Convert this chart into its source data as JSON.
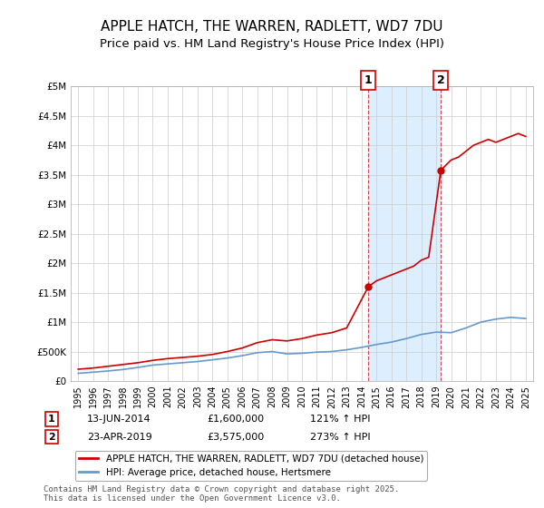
{
  "title": "APPLE HATCH, THE WARREN, RADLETT, WD7 7DU",
  "subtitle": "Price paid vs. HM Land Registry's House Price Index (HPI)",
  "title_fontsize": 11,
  "subtitle_fontsize": 9.5,
  "legend_label_red": "APPLE HATCH, THE WARREN, RADLETT, WD7 7DU (detached house)",
  "legend_label_blue": "HPI: Average price, detached house, Hertsmere",
  "annotation1_label": "1",
  "annotation1_date": "13-JUN-2014",
  "annotation1_price": "£1,600,000",
  "annotation1_hpi": "121% ↑ HPI",
  "annotation1_year": 2014.45,
  "annotation1_value": 1600000,
  "annotation2_label": "2",
  "annotation2_date": "23-APR-2019",
  "annotation2_price": "£3,575,000",
  "annotation2_hpi": "273% ↑ HPI",
  "annotation2_year": 2019.31,
  "annotation2_value": 3575000,
  "ylim": [
    0,
    5000000
  ],
  "xlim": [
    1994.5,
    2025.5
  ],
  "yticks": [
    0,
    500000,
    1000000,
    1500000,
    2000000,
    2500000,
    3000000,
    3500000,
    4000000,
    4500000,
    5000000
  ],
  "ytick_labels": [
    "£0",
    "£500K",
    "£1M",
    "£1.5M",
    "£2M",
    "£2.5M",
    "£3M",
    "£3.5M",
    "£4M",
    "£4.5M",
    "£5M"
  ],
  "xticks": [
    1995,
    1996,
    1997,
    1998,
    1999,
    2000,
    2001,
    2002,
    2003,
    2004,
    2005,
    2006,
    2007,
    2008,
    2009,
    2010,
    2011,
    2012,
    2013,
    2014,
    2015,
    2016,
    2017,
    2018,
    2019,
    2020,
    2021,
    2022,
    2023,
    2024,
    2025
  ],
  "red_color": "#cc0000",
  "blue_color": "#6699cc",
  "shade_color": "#ddeeff",
  "grid_color": "#cccccc",
  "background_color": "#ffffff",
  "footnote": "Contains HM Land Registry data © Crown copyright and database right 2025.\nThis data is licensed under the Open Government Licence v3.0.",
  "red_x": [
    1995,
    1996,
    1997,
    1998,
    1999,
    2000,
    2001,
    2002,
    2003,
    2004,
    2005,
    2006,
    2007,
    2008,
    2009,
    2010,
    2011,
    2012,
    2013,
    2014.45,
    2015,
    2015.5,
    2016,
    2016.5,
    2017,
    2017.5,
    2018,
    2018.5,
    2019.31,
    2019.8,
    2020,
    2020.5,
    2021,
    2021.5,
    2022,
    2022.5,
    2023,
    2023.5,
    2024,
    2024.5,
    2025
  ],
  "red_y": [
    200000,
    220000,
    250000,
    280000,
    310000,
    350000,
    380000,
    400000,
    420000,
    450000,
    500000,
    560000,
    650000,
    700000,
    680000,
    720000,
    780000,
    820000,
    900000,
    1600000,
    1700000,
    1750000,
    1800000,
    1850000,
    1900000,
    1950000,
    2050000,
    2100000,
    3575000,
    3700000,
    3750000,
    3800000,
    3900000,
    4000000,
    4050000,
    4100000,
    4050000,
    4100000,
    4150000,
    4200000,
    4150000
  ],
  "blue_x": [
    1995,
    1996,
    1997,
    1998,
    1999,
    2000,
    2001,
    2002,
    2003,
    2004,
    2005,
    2006,
    2007,
    2008,
    2009,
    2010,
    2011,
    2012,
    2013,
    2014,
    2015,
    2016,
    2017,
    2018,
    2019,
    2020,
    2021,
    2022,
    2023,
    2024,
    2025
  ],
  "blue_y": [
    130000,
    150000,
    170000,
    195000,
    230000,
    270000,
    290000,
    310000,
    330000,
    360000,
    390000,
    430000,
    480000,
    500000,
    460000,
    470000,
    490000,
    500000,
    530000,
    570000,
    620000,
    660000,
    720000,
    790000,
    830000,
    820000,
    900000,
    1000000,
    1050000,
    1080000,
    1060000
  ]
}
